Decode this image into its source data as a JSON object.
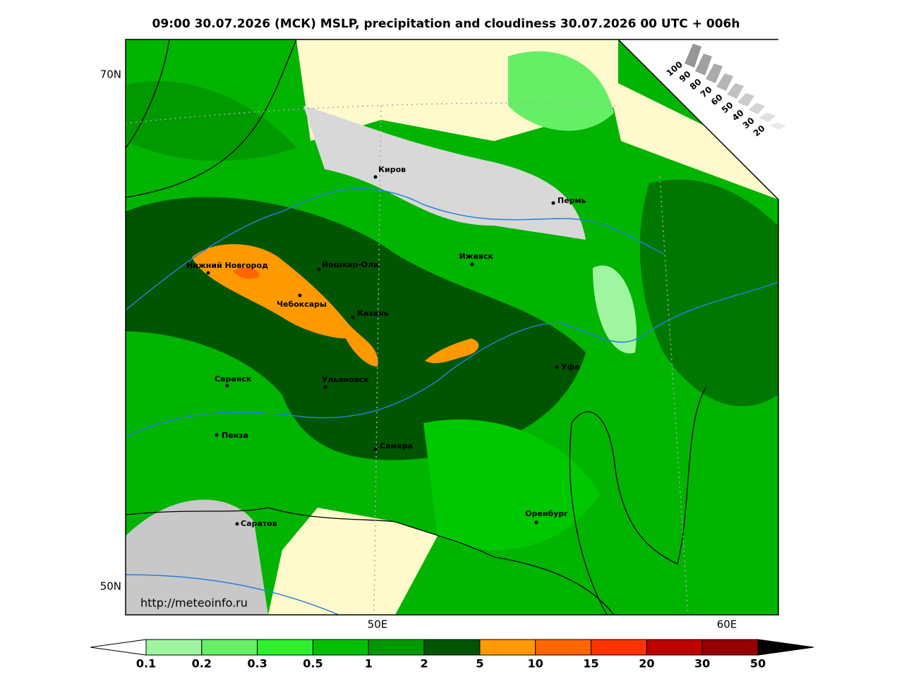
{
  "title": "09:00 30.07.2026 (МСК) MSLP, precipitation and cloudiness 30.07.2026 00 UTC + 006h",
  "lat_labels": [
    "70N",
    "50N"
  ],
  "lon_labels": [
    "50E",
    "60E"
  ],
  "cities": [
    "Киров",
    "Пермь",
    "Нижний Новгород",
    "Йошкар-Ола",
    "Ижевск",
    "Чебоксары",
    "Казань",
    "Уфа",
    "Саранск",
    "Ульяновск",
    "Пенза",
    "Самара",
    "Оренбург",
    "Саратов"
  ],
  "source": "http://meteoinfo.ru",
  "cloud_legend": [
    "100",
    "90",
    "80",
    "70",
    "60",
    "50",
    "40",
    "30",
    "20"
  ],
  "colorbar": {
    "ticks": [
      "0.1",
      "0.2",
      "0.3",
      "0.5",
      "1",
      "2",
      "5",
      "10",
      "15",
      "20",
      "30",
      "50"
    ],
    "colors": [
      "#a0f5a0",
      "#66ee66",
      "#2ef02e",
      "#00c000",
      "#009a00",
      "#005500",
      "#ff9900",
      "#ff6600",
      "#ff3300",
      "#c00000",
      "#960000"
    ]
  }
}
